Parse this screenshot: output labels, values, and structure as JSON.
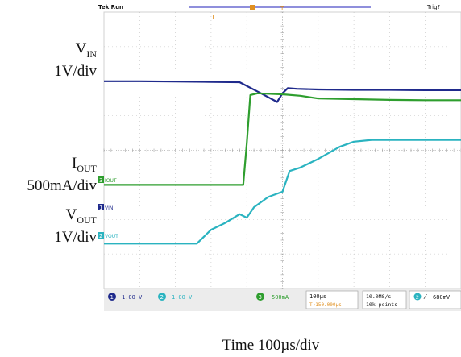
{
  "labels": {
    "vin_main": "V",
    "vin_sub": "IN",
    "vin_scale": "1V/div",
    "iout_main": "I",
    "iout_sub": "OUT",
    "iout_scale": "500mA/div",
    "vout_main": "V",
    "vout_sub": "OUT",
    "vout_scale": "1V/div",
    "time": "Time 100µs/div"
  },
  "scope": {
    "header_left": "Tek Run",
    "header_right": "Trig?",
    "marker_t": "T",
    "ch_label_iout": "IOUT",
    "ch_label_vin": "VIN",
    "ch_label_vout": "VOUT",
    "ch_marker_1": "1",
    "ch_marker_2": "2",
    "ch_marker_3": "3",
    "ch1_scale": "1.00 V",
    "ch2_scale": "1.00 V",
    "ch3_scale": "500mA",
    "timebase": "100µs",
    "trigger_pos": "T→150.000µs",
    "sample_rate": "10.0MS/s",
    "record_length": "10k points",
    "trigger_level": "680mV",
    "colors": {
      "vin": "#1f2a8c",
      "iout": "#2e9e2e",
      "vout": "#2ab3c0",
      "grid": "#bfbfbf",
      "status": "#e8e8e8"
    }
  },
  "chart_data": {
    "type": "line",
    "xlabel": "Time 100µs/div",
    "divisions": {
      "x": 10,
      "y": 8
    },
    "series": [
      {
        "name": "VIN",
        "scale": "1V/div",
        "x": [
          0,
          1.0,
          2.0,
          3.0,
          3.8,
          4.4,
          4.85,
          5.0,
          5.15,
          5.4,
          6.0,
          7.0,
          8.0,
          9.0,
          10.0
        ],
        "y": [
          2.0,
          2.0,
          1.99,
          1.98,
          1.97,
          1.65,
          1.4,
          1.65,
          1.8,
          1.78,
          1.76,
          1.75,
          1.75,
          1.74,
          1.74
        ]
      },
      {
        "name": "IOUT",
        "scale": "500mA/div",
        "x": [
          0,
          1.0,
          2.0,
          3.0,
          3.9,
          4.0,
          4.1,
          4.3,
          5.0,
          5.5,
          6.0,
          7.0,
          8.0,
          9.0,
          10.0
        ],
        "y": [
          -1.0,
          -1.0,
          -1.0,
          -1.0,
          -1.0,
          0.2,
          1.6,
          1.65,
          1.62,
          1.58,
          1.5,
          1.48,
          1.46,
          1.45,
          1.45
        ]
      },
      {
        "name": "VOUT",
        "scale": "1V/div",
        "x": [
          0,
          1.0,
          2.0,
          2.6,
          3.0,
          3.4,
          3.8,
          4.0,
          4.2,
          4.6,
          5.0,
          5.2,
          5.5,
          6.0,
          6.6,
          7.0,
          7.5,
          8.0,
          9.0,
          10.0
        ],
        "y": [
          -2.7,
          -2.7,
          -2.7,
          -2.7,
          -2.3,
          -2.1,
          -1.85,
          -1.95,
          -1.65,
          -1.35,
          -1.2,
          -0.6,
          -0.5,
          -0.25,
          0.1,
          0.25,
          0.3,
          0.3,
          0.3,
          0.3
        ]
      }
    ]
  }
}
